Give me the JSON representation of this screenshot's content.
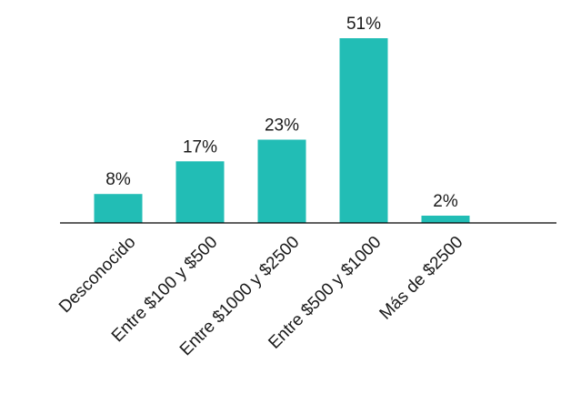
{
  "chart_data": {
    "type": "bar",
    "categories": [
      "Desconocido",
      "Entre $100 y $500",
      "Entre $1000 y $2500",
      "Entre $500 y $1000",
      "Más de $2500"
    ],
    "values": [
      8,
      17,
      23,
      51,
      2
    ],
    "value_labels": [
      "8%",
      "17%",
      "23%",
      "51%",
      "2%"
    ],
    "unit": "%",
    "title": "",
    "xlabel": "",
    "ylabel": "",
    "ylim": [
      0,
      51
    ],
    "grid": false,
    "legend": "none",
    "bar_color": "#22BDB5",
    "axis_color": "#000000",
    "text_color": "#1a1a1a"
  }
}
